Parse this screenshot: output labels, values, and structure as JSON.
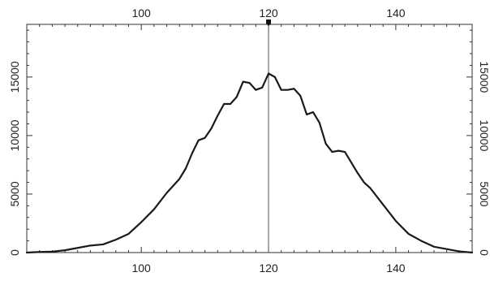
{
  "chart_data": {
    "type": "line",
    "title": "",
    "xlabel": "",
    "ylabel": "",
    "xlim": [
      82,
      152
    ],
    "ylim": [
      0,
      19500
    ],
    "x_ticks": [
      100,
      120,
      140
    ],
    "y_ticks": [
      0,
      5000,
      10000,
      15000
    ],
    "grid": false,
    "cursor_x": 120,
    "series": [
      {
        "x": [
          82,
          84,
          86,
          88,
          90,
          92,
          94,
          96,
          98,
          100,
          102,
          104,
          106,
          107,
          108,
          109,
          110,
          111,
          112,
          113,
          114,
          115,
          116,
          117,
          118,
          119,
          120,
          121,
          122,
          123,
          124,
          125,
          126,
          127,
          128,
          129,
          130,
          131,
          132,
          133,
          134,
          135,
          136,
          138,
          140,
          142,
          144,
          146,
          148,
          150,
          152
        ],
        "y": [
          0,
          50,
          80,
          200,
          400,
          600,
          700,
          1100,
          1600,
          2600,
          3700,
          5100,
          6300,
          7200,
          8500,
          9600,
          9800,
          10600,
          11700,
          12700,
          12700,
          13300,
          14600,
          14500,
          13900,
          14100,
          15300,
          15000,
          13900,
          13900,
          14000,
          13400,
          11800,
          12000,
          11100,
          9300,
          8600,
          8700,
          8600,
          7700,
          6800,
          6000,
          5500,
          4100,
          2700,
          1600,
          1000,
          500,
          300,
          100,
          0
        ]
      }
    ],
    "colors": {
      "line": "#1a1a1a",
      "axis": "#333333",
      "text": "#222222",
      "background": "#ffffff"
    }
  }
}
